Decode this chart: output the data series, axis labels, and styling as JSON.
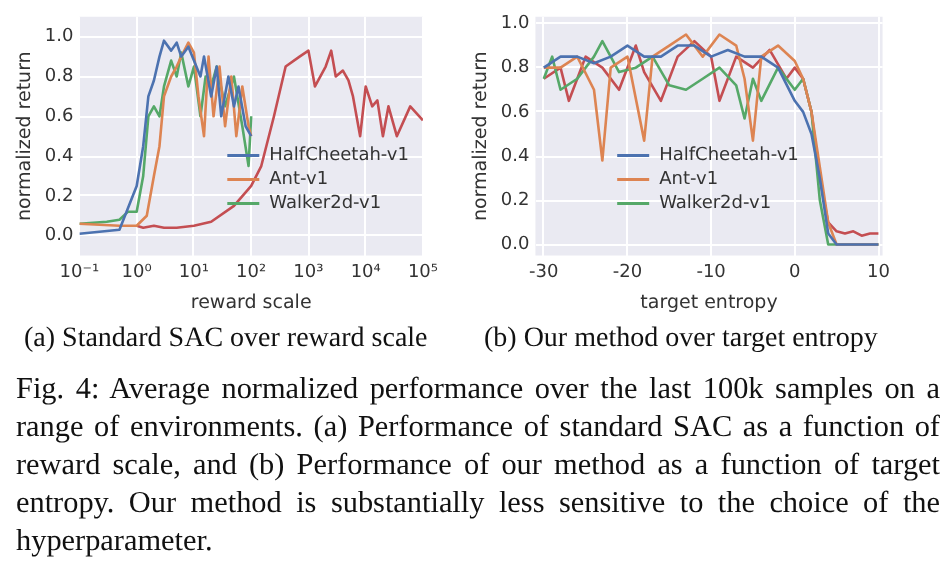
{
  "chart_data": [
    {
      "type": "line",
      "title": "(a) Standard SAC over reward scale",
      "xlabel": "reward scale",
      "ylabel": "normalized return",
      "log": "x",
      "grid": true,
      "legend": "bottom right",
      "xlim": [
        0.1,
        100000
      ],
      "ylim": [
        -0.1,
        1.1
      ],
      "xticks": [
        {
          "value": 0.1,
          "label": "10⁻¹"
        },
        {
          "value": 1,
          "label": "10⁰"
        },
        {
          "value": 10,
          "label": "10¹"
        },
        {
          "value": 100,
          "label": "10²"
        },
        {
          "value": 1000,
          "label": "10³"
        },
        {
          "value": 10000,
          "label": "10⁴"
        },
        {
          "value": 100000,
          "label": "10⁵"
        }
      ],
      "yticks": [
        {
          "value": 0,
          "label": "0.0"
        },
        {
          "value": 0.2,
          "label": "0.2"
        },
        {
          "value": 0.4,
          "label": "0.4"
        },
        {
          "value": 0.6,
          "label": "0.6"
        },
        {
          "value": 0.8,
          "label": "0.8"
        },
        {
          "value": 1,
          "label": "1.0"
        }
      ],
      "series": [
        {
          "name": "HalfCheetah-v1",
          "color": "#4c72b0",
          "x": [
            0.1,
            0.5,
            1,
            1.3,
            1.6,
            2,
            2.5,
            3,
            4,
            5,
            6,
            8,
            10,
            13,
            15,
            20,
            25,
            30,
            40,
            50,
            60,
            80,
            100
          ],
          "values": [
            0.01,
            0.03,
            0.25,
            0.45,
            0.7,
            0.78,
            0.9,
            0.98,
            0.93,
            0.97,
            0.9,
            0.95,
            0.88,
            0.8,
            0.9,
            0.7,
            0.85,
            0.6,
            0.8,
            0.65,
            0.75,
            0.55,
            0.5
          ]
        },
        {
          "name": "Ant-v1",
          "color": "#dd8452",
          "x": [
            0.1,
            0.5,
            1,
            1.5,
            2,
            2.5,
            3,
            4,
            5,
            6,
            8,
            10,
            12,
            15,
            18,
            22,
            28,
            35,
            45,
            55,
            70,
            90,
            100
          ],
          "values": [
            0.06,
            0.05,
            0.05,
            0.1,
            0.3,
            0.45,
            0.7,
            0.8,
            0.85,
            0.9,
            0.97,
            0.92,
            0.7,
            0.5,
            0.9,
            0.6,
            0.85,
            0.55,
            0.8,
            0.5,
            0.75,
            0.55,
            0.5
          ]
        },
        {
          "name": "Walker2d-v1",
          "color": "#55a868",
          "x": [
            0.1,
            0.3,
            0.5,
            0.7,
            1,
            1.3,
            1.6,
            2,
            2.5,
            3,
            4,
            5,
            6,
            8,
            10,
            13,
            16,
            20,
            25,
            35,
            50,
            70,
            90,
            100
          ],
          "values": [
            0.06,
            0.07,
            0.08,
            0.12,
            0.12,
            0.3,
            0.6,
            0.65,
            0.6,
            0.75,
            0.88,
            0.8,
            0.92,
            0.75,
            0.85,
            0.6,
            0.8,
            0.75,
            0.85,
            0.65,
            0.8,
            0.55,
            0.35,
            0.6
          ]
        },
        {
          "color": "#c44e52",
          "x": [
            1,
            1.3,
            2,
            3,
            5,
            10,
            20,
            50,
            100,
            150,
            250,
            400,
            700,
            1000,
            1300,
            2000,
            2500,
            3000,
            4000,
            5000,
            6000,
            8000,
            10000,
            13000,
            16000,
            20000,
            25000,
            35000,
            60000,
            100000
          ],
          "values": [
            0.05,
            0.04,
            0.05,
            0.04,
            0.04,
            0.05,
            0.07,
            0.15,
            0.25,
            0.35,
            0.6,
            0.85,
            0.9,
            0.93,
            0.75,
            0.85,
            0.93,
            0.8,
            0.83,
            0.78,
            0.7,
            0.5,
            0.75,
            0.65,
            0.68,
            0.5,
            0.65,
            0.5,
            0.65,
            0.58
          ]
        }
      ]
    },
    {
      "type": "line",
      "title": "(b) Our method over target entropy",
      "xlabel": "target entropy",
      "ylabel": "normalized return",
      "grid": true,
      "legend": "bottom",
      "xlim": [
        -31,
        10.5
      ],
      "ylim": [
        -0.05,
        1.03
      ],
      "xticks": [
        -30,
        -20,
        -10,
        0,
        10
      ],
      "yticks": [
        {
          "value": 0,
          "label": "0.0"
        },
        {
          "value": 0.2,
          "label": "0.2"
        },
        {
          "value": 0.4,
          "label": "0.4"
        },
        {
          "value": 0.6,
          "label": "0.6"
        },
        {
          "value": 0.8,
          "label": "0.8"
        },
        {
          "value": 1,
          "label": "1.0"
        }
      ],
      "annotations": [
        "Fig. 4: Average normalized performance over the last 100k samples on a range of environments. (a) Performance of standard SAC as a function of reward scale, and (b) Performance of our method as a function of target entropy. Our method is substantially less sensitive to the choice of the hyperparameter."
      ],
      "series": [
        {
          "name": "HalfCheetah-v1",
          "color": "#4c72b0",
          "x": [
            -30,
            -28,
            -26,
            -24,
            -22,
            -20,
            -18,
            -16,
            -14,
            -12,
            -10,
            -8,
            -6,
            -4,
            -2,
            0,
            1,
            2,
            3,
            4,
            5,
            10
          ],
          "values": [
            0.8,
            0.85,
            0.85,
            0.82,
            0.85,
            0.9,
            0.85,
            0.85,
            0.9,
            0.9,
            0.85,
            0.88,
            0.85,
            0.85,
            0.8,
            0.65,
            0.6,
            0.5,
            0.3,
            0.05,
            0,
            0
          ]
        },
        {
          "name": "Ant-v1",
          "color": "#dd8452",
          "x": [
            -30,
            -28,
            -26,
            -24,
            -23,
            -22,
            -20,
            -18,
            -17,
            -15,
            -13,
            -11,
            -9,
            -7,
            -6,
            -5,
            -4,
            -2,
            0,
            1,
            2,
            3,
            4,
            5,
            10
          ],
          "values": [
            0.8,
            0.8,
            0.85,
            0.7,
            0.38,
            0.8,
            0.85,
            0.47,
            0.85,
            0.9,
            0.95,
            0.85,
            0.95,
            0.9,
            0.75,
            0.47,
            0.85,
            0.9,
            0.83,
            0.75,
            0.6,
            0.35,
            0.1,
            0,
            0
          ]
        },
        {
          "name": "Walker2d-v1",
          "color": "#55a868",
          "x": [
            -30,
            -29,
            -28,
            -26,
            -24,
            -23,
            -21,
            -19,
            -17,
            -15,
            -13,
            -11,
            -9,
            -7,
            -6,
            -5,
            -4,
            -2,
            0,
            1,
            2,
            3,
            4,
            10
          ],
          "values": [
            0.75,
            0.85,
            0.7,
            0.75,
            0.85,
            0.92,
            0.78,
            0.8,
            0.85,
            0.72,
            0.7,
            0.75,
            0.8,
            0.72,
            0.57,
            0.75,
            0.65,
            0.8,
            0.7,
            0.75,
            0.6,
            0.2,
            0,
            0
          ]
        },
        {
          "color": "#c44e52",
          "x": [
            -30,
            -28,
            -27,
            -25,
            -23,
            -21,
            -19,
            -18,
            -16,
            -14,
            -12,
            -10,
            -9,
            -7,
            -5,
            -3,
            -1,
            0,
            1,
            2,
            3,
            4,
            5,
            6,
            7,
            8,
            9,
            10
          ],
          "values": [
            0.75,
            0.8,
            0.65,
            0.85,
            0.8,
            0.7,
            0.9,
            0.78,
            0.65,
            0.85,
            0.92,
            0.85,
            0.65,
            0.85,
            0.8,
            0.88,
            0.75,
            0.8,
            0.75,
            0.6,
            0.3,
            0.1,
            0.06,
            0.05,
            0.06,
            0.04,
            0.05,
            0.05
          ]
        }
      ]
    }
  ]
}
